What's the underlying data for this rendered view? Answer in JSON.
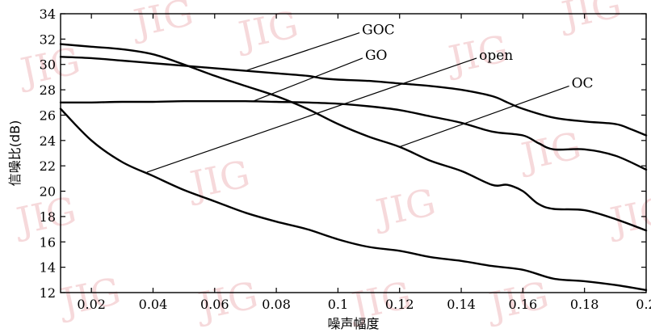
{
  "chart_data": {
    "type": "line",
    "xlabel": "噪声幅度",
    "ylabel": "信噪比(dB)",
    "xlim": [
      0.01,
      0.2
    ],
    "ylim": [
      12,
      34
    ],
    "grid": false,
    "xticks": [
      0.02,
      0.04,
      0.06,
      0.08,
      0.1,
      0.12,
      0.14,
      0.16,
      0.18,
      0.2
    ],
    "xtick_labels": [
      "0.02",
      "0.04",
      "0.06",
      "0.08",
      "0.1",
      "0.12",
      "0.14",
      "0.16",
      "0.18",
      "0.2"
    ],
    "yticks": [
      12,
      14,
      16,
      18,
      20,
      22,
      24,
      26,
      28,
      30,
      32,
      34
    ],
    "ytick_labels": [
      "12",
      "14",
      "16",
      "18",
      "20",
      "22",
      "24",
      "26",
      "28",
      "30",
      "32",
      "34"
    ],
    "series": [
      {
        "name": "GOC",
        "x": [
          0.01,
          0.02,
          0.03,
          0.04,
          0.05,
          0.06,
          0.07,
          0.08,
          0.09,
          0.095,
          0.1,
          0.11,
          0.12,
          0.13,
          0.14,
          0.15,
          0.155,
          0.16,
          0.17,
          0.18,
          0.19,
          0.195,
          0.2
        ],
        "y": [
          30.6,
          30.5,
          30.3,
          30.1,
          29.9,
          29.7,
          29.5,
          29.3,
          29.1,
          28.9,
          28.8,
          28.7,
          28.5,
          28.3,
          28.0,
          27.5,
          27.0,
          26.5,
          25.8,
          25.5,
          25.3,
          24.9,
          24.4
        ]
      },
      {
        "name": "GO",
        "x": [
          0.01,
          0.02,
          0.03,
          0.04,
          0.05,
          0.06,
          0.07,
          0.08,
          0.09,
          0.1,
          0.11,
          0.12,
          0.13,
          0.14,
          0.15,
          0.16,
          0.165,
          0.17,
          0.18,
          0.19,
          0.2
        ],
        "y": [
          27.0,
          27.0,
          27.05,
          27.05,
          27.1,
          27.1,
          27.1,
          27.05,
          27.0,
          26.9,
          26.7,
          26.4,
          25.9,
          25.4,
          24.7,
          24.4,
          23.8,
          23.3,
          23.3,
          22.8,
          21.7
        ]
      },
      {
        "name": "OC",
        "x": [
          0.01,
          0.02,
          0.03,
          0.04,
          0.05,
          0.06,
          0.07,
          0.08,
          0.09,
          0.1,
          0.11,
          0.12,
          0.13,
          0.14,
          0.15,
          0.155,
          0.16,
          0.165,
          0.17,
          0.18,
          0.19,
          0.2
        ],
        "y": [
          31.6,
          31.4,
          31.2,
          30.8,
          30.0,
          29.1,
          28.3,
          27.5,
          26.5,
          25.3,
          24.3,
          23.5,
          22.4,
          21.6,
          20.5,
          20.5,
          20.0,
          19.0,
          18.6,
          18.5,
          17.8,
          16.9
        ]
      },
      {
        "name": "open",
        "x": [
          0.01,
          0.02,
          0.03,
          0.04,
          0.05,
          0.06,
          0.07,
          0.08,
          0.09,
          0.1,
          0.11,
          0.12,
          0.13,
          0.14,
          0.15,
          0.16,
          0.17,
          0.18,
          0.19,
          0.2
        ],
        "y": [
          26.5,
          24.0,
          22.3,
          21.2,
          20.1,
          19.2,
          18.3,
          17.6,
          17.0,
          16.2,
          15.6,
          15.3,
          14.8,
          14.5,
          14.1,
          13.8,
          13.1,
          12.9,
          12.6,
          12.2
        ]
      }
    ],
    "annotations": [
      {
        "text": "GOC",
        "target": [
          0.07,
          29.5
        ],
        "label_at": [
          0.107,
          32.5
        ]
      },
      {
        "text": "GO",
        "target": [
          0.072,
          27.05
        ],
        "label_at": [
          0.108,
          30.5
        ]
      },
      {
        "text": "open",
        "target": [
          0.038,
          21.5
        ],
        "label_at": [
          0.145,
          30.5
        ]
      },
      {
        "text": "OC",
        "target": [
          0.12,
          23.5
        ],
        "label_at": [
          0.175,
          28.3
        ]
      }
    ]
  },
  "watermark": "JIG"
}
